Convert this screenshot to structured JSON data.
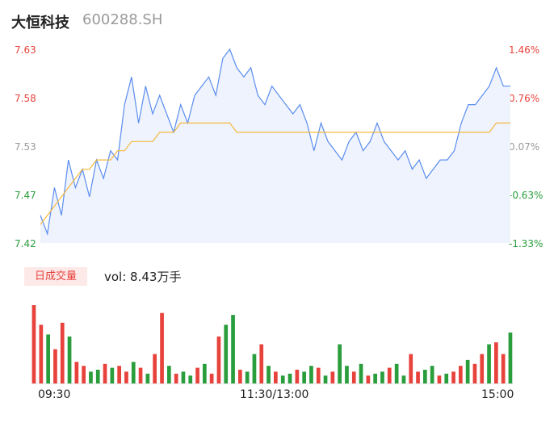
{
  "header": {
    "name": "大恒科技",
    "code": "600288.SH"
  },
  "y_labels_left": [
    "7.63",
    "7.58",
    "7.53",
    "7.47",
    "7.42"
  ],
  "y_labels_right": [
    "1.46%",
    "0.76%",
    "0.07%",
    "-0.63%",
    "-1.33%"
  ],
  "colors": {
    "up": "#e8423c",
    "down": "#2a9d3c",
    "neutral": "#999999",
    "price_line": "#5b8def",
    "avg_line": "#f5b942",
    "area": "#eef3fd"
  },
  "volume": {
    "badge": "日成交量",
    "text": "vol: 8.43万手"
  },
  "x_labels": [
    "09:30",
    "11:30/13:00",
    "15:00"
  ],
  "chart_data": {
    "type": "line",
    "ylim": [
      7.42,
      7.63
    ],
    "pct_lim": [
      -1.33,
      1.46
    ],
    "price": [
      7.45,
      7.43,
      7.48,
      7.45,
      7.51,
      7.48,
      7.5,
      7.47,
      7.51,
      7.49,
      7.52,
      7.51,
      7.57,
      7.6,
      7.55,
      7.59,
      7.56,
      7.58,
      7.56,
      7.54,
      7.57,
      7.55,
      7.58,
      7.59,
      7.6,
      7.58,
      7.62,
      7.63,
      7.61,
      7.6,
      7.61,
      7.58,
      7.57,
      7.59,
      7.58,
      7.57,
      7.56,
      7.57,
      7.55,
      7.52,
      7.55,
      7.53,
      7.52,
      7.51,
      7.53,
      7.54,
      7.52,
      7.53,
      7.55,
      7.53,
      7.52,
      7.51,
      7.52,
      7.5,
      7.51,
      7.49,
      7.5,
      7.51,
      7.51,
      7.52,
      7.55,
      7.57,
      7.57,
      7.58,
      7.59,
      7.61,
      7.59,
      7.59
    ],
    "avg": [
      7.44,
      7.45,
      7.46,
      7.47,
      7.48,
      7.49,
      7.5,
      7.5,
      7.51,
      7.51,
      7.51,
      7.52,
      7.52,
      7.53,
      7.53,
      7.53,
      7.53,
      7.54,
      7.54,
      7.54,
      7.55,
      7.55,
      7.55,
      7.55,
      7.55,
      7.55,
      7.55,
      7.55,
      7.54,
      7.54,
      7.54,
      7.54,
      7.54,
      7.54,
      7.54,
      7.54,
      7.54,
      7.54,
      7.54,
      7.54,
      7.54,
      7.54,
      7.54,
      7.54,
      7.54,
      7.54,
      7.54,
      7.54,
      7.54,
      7.54,
      7.54,
      7.54,
      7.54,
      7.54,
      7.54,
      7.54,
      7.54,
      7.54,
      7.54,
      7.54,
      7.54,
      7.54,
      7.54,
      7.54,
      7.54,
      7.55,
      7.55,
      7.55
    ],
    "volume": [
      80,
      60,
      50,
      35,
      62,
      48,
      22,
      18,
      12,
      14,
      20,
      16,
      18,
      12,
      22,
      16,
      10,
      30,
      72,
      18,
      10,
      12,
      8,
      16,
      20,
      10,
      48,
      60,
      70,
      14,
      12,
      30,
      40,
      18,
      12,
      8,
      10,
      14,
      12,
      18,
      16,
      8,
      12,
      40,
      18,
      12,
      20,
      8,
      10,
      12,
      16,
      20,
      8,
      30,
      12,
      14,
      18,
      8,
      10,
      12,
      18,
      24,
      20,
      30,
      40,
      42,
      30,
      52
    ],
    "volume_up": [
      true,
      true,
      false,
      true,
      true,
      false,
      true,
      true,
      false,
      false,
      true,
      false,
      true,
      true,
      false,
      true,
      false,
      true,
      true,
      false,
      true,
      false,
      false,
      true,
      false,
      true,
      true,
      false,
      false,
      true,
      false,
      false,
      true,
      false,
      true,
      false,
      false,
      true,
      false,
      false,
      true,
      false,
      true,
      false,
      false,
      true,
      false,
      true,
      false,
      false,
      true,
      false,
      false,
      true,
      true,
      false,
      false,
      true,
      false,
      true,
      true,
      false,
      true,
      true,
      false,
      true,
      true,
      false
    ]
  }
}
